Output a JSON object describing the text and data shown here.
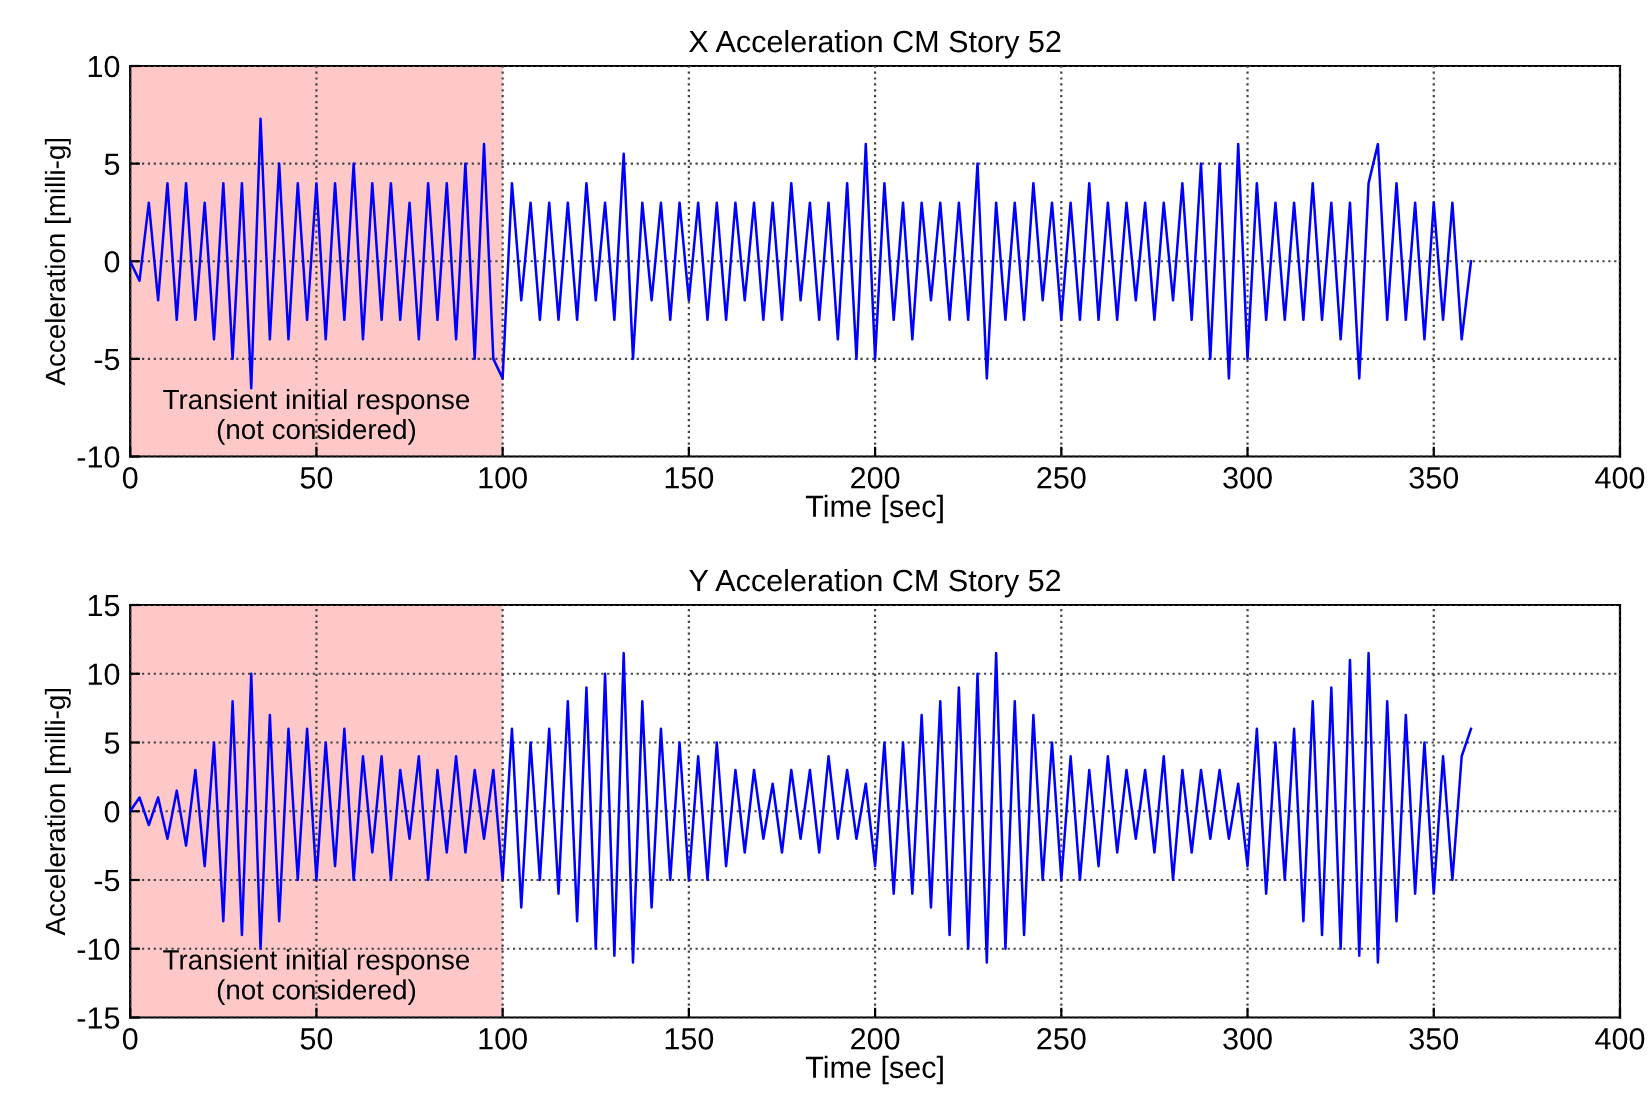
{
  "chart_data": [
    {
      "type": "line",
      "title": "X Acceleration CM Story 52",
      "xlabel": "Time [sec]",
      "ylabel": "Acceleration [milli-g]",
      "x": [
        0,
        2.5,
        5,
        7.5,
        10,
        12.5,
        15,
        17.5,
        20,
        22.5,
        25,
        27.5,
        30,
        32.5,
        35,
        37.5,
        40,
        42.5,
        45,
        47.5,
        50,
        52.5,
        55,
        57.5,
        60,
        62.5,
        65,
        67.5,
        70,
        72.5,
        75,
        77.5,
        80,
        82.5,
        85,
        87.5,
        90,
        92.5,
        95,
        97.5,
        100,
        102.5,
        105,
        107.5,
        110,
        112.5,
        115,
        117.5,
        120,
        122.5,
        125,
        127.5,
        130,
        132.5,
        135,
        137.5,
        140,
        142.5,
        145,
        147.5,
        150,
        152.5,
        155,
        157.5,
        160,
        162.5,
        165,
        167.5,
        170,
        172.5,
        175,
        177.5,
        180,
        182.5,
        185,
        187.5,
        190,
        192.5,
        195,
        197.5,
        200,
        202.5,
        205,
        207.5,
        210,
        212.5,
        215,
        217.5,
        220,
        222.5,
        225,
        227.5,
        230,
        232.5,
        235,
        237.5,
        240,
        242.5,
        245,
        247.5,
        250,
        252.5,
        255,
        257.5,
        260,
        262.5,
        265,
        267.5,
        270,
        272.5,
        275,
        277.5,
        280,
        282.5,
        285,
        287.5,
        290,
        292.5,
        295,
        297.5,
        300,
        302.5,
        305,
        307.5,
        310,
        312.5,
        315,
        317.5,
        320,
        322.5,
        325,
        327.5,
        330,
        332.5,
        335,
        337.5,
        340,
        342.5,
        345,
        347.5,
        350,
        352.5,
        355,
        357.5,
        360
      ],
      "series": [
        {
          "color": "#0000ff",
          "values": [
            0,
            -1,
            3,
            -2,
            4,
            -3,
            4,
            -3,
            3,
            -4,
            4,
            -5,
            4,
            -6.5,
            7.3,
            -4,
            5,
            -4,
            4,
            -3,
            4,
            -4,
            4,
            -3,
            5,
            -4,
            4,
            -3,
            4,
            -3,
            3,
            -4,
            4,
            -3,
            4,
            -4,
            5,
            -5,
            6,
            -5,
            -6,
            4,
            -2,
            3,
            -3,
            3,
            -3,
            3,
            -3,
            4,
            -2,
            3,
            -3,
            5.5,
            -5,
            3,
            -2,
            3,
            -3,
            3,
            -2,
            3,
            -3,
            3,
            -3,
            3,
            -2,
            3,
            -3,
            3,
            -3,
            4,
            -2,
            3,
            -3,
            3,
            -4,
            4,
            -5,
            6,
            -5,
            4,
            -3,
            3,
            -4,
            3,
            -2,
            3,
            -3,
            3,
            -3,
            5,
            -6,
            3,
            -3,
            3,
            -3,
            4,
            -2,
            3,
            -3,
            3,
            -3,
            4,
            -3,
            3,
            -3,
            3,
            -2,
            3,
            -3,
            3,
            -2,
            4,
            -3,
            5,
            -5,
            5,
            -6,
            6,
            -5,
            4,
            -3,
            3,
            -3,
            3,
            -3,
            4,
            -3,
            3,
            -4,
            3,
            -6,
            4,
            6,
            -3,
            4,
            -3,
            3,
            -4,
            3,
            -3,
            3,
            -4,
            0
          ]
        }
      ],
      "xlim": [
        0,
        400
      ],
      "xticks": [
        0,
        50,
        100,
        150,
        200,
        250,
        300,
        350,
        400
      ],
      "ylim": [
        -10,
        10
      ],
      "yticks": [
        -10,
        -5,
        0,
        5,
        10
      ],
      "grid": true,
      "line_style": "solid",
      "marker": "none",
      "bands": [
        {
          "axis": "x",
          "from": 0,
          "to": 100,
          "label": "Transient initial response\n(not considered)",
          "color": "#ffc8c8"
        }
      ]
    },
    {
      "type": "line",
      "title": "Y Acceleration CM Story 52",
      "xlabel": "Time [sec]",
      "ylabel": "Acceleration [milli-g]",
      "x": [
        0,
        2.5,
        5,
        7.5,
        10,
        12.5,
        15,
        17.5,
        20,
        22.5,
        25,
        27.5,
        30,
        32.5,
        35,
        37.5,
        40,
        42.5,
        45,
        47.5,
        50,
        52.5,
        55,
        57.5,
        60,
        62.5,
        65,
        67.5,
        70,
        72.5,
        75,
        77.5,
        80,
        82.5,
        85,
        87.5,
        90,
        92.5,
        95,
        97.5,
        100,
        102.5,
        105,
        107.5,
        110,
        112.5,
        115,
        117.5,
        120,
        122.5,
        125,
        127.5,
        130,
        132.5,
        135,
        137.5,
        140,
        142.5,
        145,
        147.5,
        150,
        152.5,
        155,
        157.5,
        160,
        162.5,
        165,
        167.5,
        170,
        172.5,
        175,
        177.5,
        180,
        182.5,
        185,
        187.5,
        190,
        192.5,
        195,
        197.5,
        200,
        202.5,
        205,
        207.5,
        210,
        212.5,
        215,
        217.5,
        220,
        222.5,
        225,
        227.5,
        230,
        232.5,
        235,
        237.5,
        240,
        242.5,
        245,
        247.5,
        250,
        252.5,
        255,
        257.5,
        260,
        262.5,
        265,
        267.5,
        270,
        272.5,
        275,
        277.5,
        280,
        282.5,
        285,
        287.5,
        290,
        292.5,
        295,
        297.5,
        300,
        302.5,
        305,
        307.5,
        310,
        312.5,
        315,
        317.5,
        320,
        322.5,
        325,
        327.5,
        330,
        332.5,
        335,
        337.5,
        340,
        342.5,
        345,
        347.5,
        350,
        352.5,
        355,
        357.5,
        360
      ],
      "series": [
        {
          "color": "#0000ff",
          "values": [
            0,
            1,
            -1,
            1,
            -2,
            1.5,
            -2.5,
            3,
            -4,
            5,
            -8,
            8,
            -9,
            10,
            -10,
            7,
            -8,
            6,
            -5,
            6,
            -5,
            5,
            -4,
            6,
            -5,
            4,
            -3,
            4,
            -5,
            3,
            -2,
            4,
            -5,
            3,
            -3,
            4,
            -3,
            3,
            -2,
            3,
            -5,
            6,
            -7,
            5,
            -5,
            6,
            -6,
            8,
            -8,
            9,
            -10,
            10,
            -10.5,
            11.5,
            -11,
            8,
            -7,
            6,
            -5,
            5,
            -5,
            4,
            -5,
            5,
            -4,
            3,
            -3,
            3,
            -2,
            2,
            -3,
            3,
            -2,
            3,
            -3,
            4,
            -2,
            3,
            -2,
            2,
            -4,
            5,
            -6,
            5,
            -6,
            7,
            -7,
            8,
            -9,
            9,
            -10,
            10,
            -11,
            11.5,
            -10,
            8,
            -9,
            7,
            -5,
            5,
            -5,
            4,
            -5,
            3,
            -4,
            4,
            -3,
            3,
            -2,
            3,
            -3,
            4,
            -5,
            3,
            -3,
            3,
            -2,
            3,
            -2,
            2,
            -4,
            6,
            -6,
            5,
            -5,
            6,
            -8,
            8,
            -9,
            9,
            -10,
            11,
            -10.5,
            11.5,
            -11,
            8,
            -8,
            7,
            -6,
            5,
            -6,
            4,
            -5,
            4,
            6
          ]
        }
      ],
      "xlim": [
        0,
        400
      ],
      "xticks": [
        0,
        50,
        100,
        150,
        200,
        250,
        300,
        350,
        400
      ],
      "ylim": [
        -15,
        15
      ],
      "yticks": [
        -15,
        -10,
        -5,
        0,
        5,
        10,
        15
      ],
      "grid": true,
      "line_style": "solid",
      "marker": "none",
      "bands": [
        {
          "axis": "x",
          "from": 0,
          "to": 100,
          "label": "Transient initial response\n(not considered)",
          "color": "#ffc8c8"
        }
      ]
    }
  ]
}
